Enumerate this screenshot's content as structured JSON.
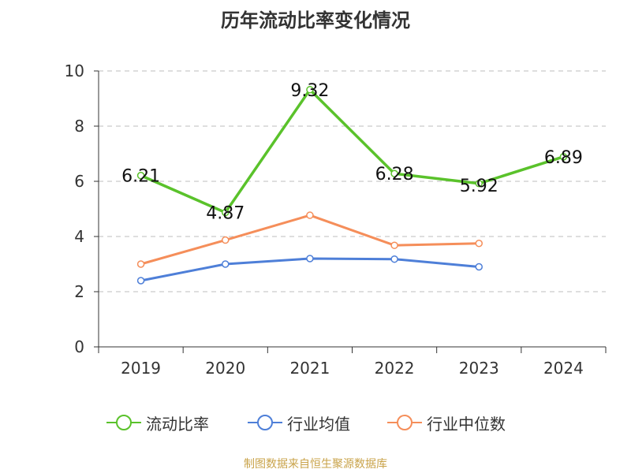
{
  "chart_data": {
    "type": "line",
    "title": "历年流动比率变化情况",
    "categories": [
      "2019",
      "2020",
      "2021",
      "2022",
      "2023",
      "2024"
    ],
    "ylim": [
      0,
      10
    ],
    "yticks": [
      0,
      2,
      4,
      6,
      8,
      10
    ],
    "grid": true,
    "legend_position": "bottom",
    "series": [
      {
        "name": "流动比率",
        "color": "#5ac22b",
        "values": [
          6.21,
          4.87,
          9.32,
          6.28,
          5.92,
          6.89
        ],
        "labels": [
          "6.21",
          "4.87",
          "9.32",
          "6.28",
          "5.92",
          "6.89"
        ]
      },
      {
        "name": "行业均值",
        "color": "#4e7fd8",
        "values": [
          2.4,
          3.0,
          3.2,
          3.18,
          2.9,
          null
        ]
      },
      {
        "name": "行业中位数",
        "color": "#f58e5a",
        "values": [
          3.0,
          3.87,
          4.77,
          3.68,
          3.75,
          null
        ]
      }
    ]
  },
  "source": "制图数据来自恒生聚源数据库"
}
